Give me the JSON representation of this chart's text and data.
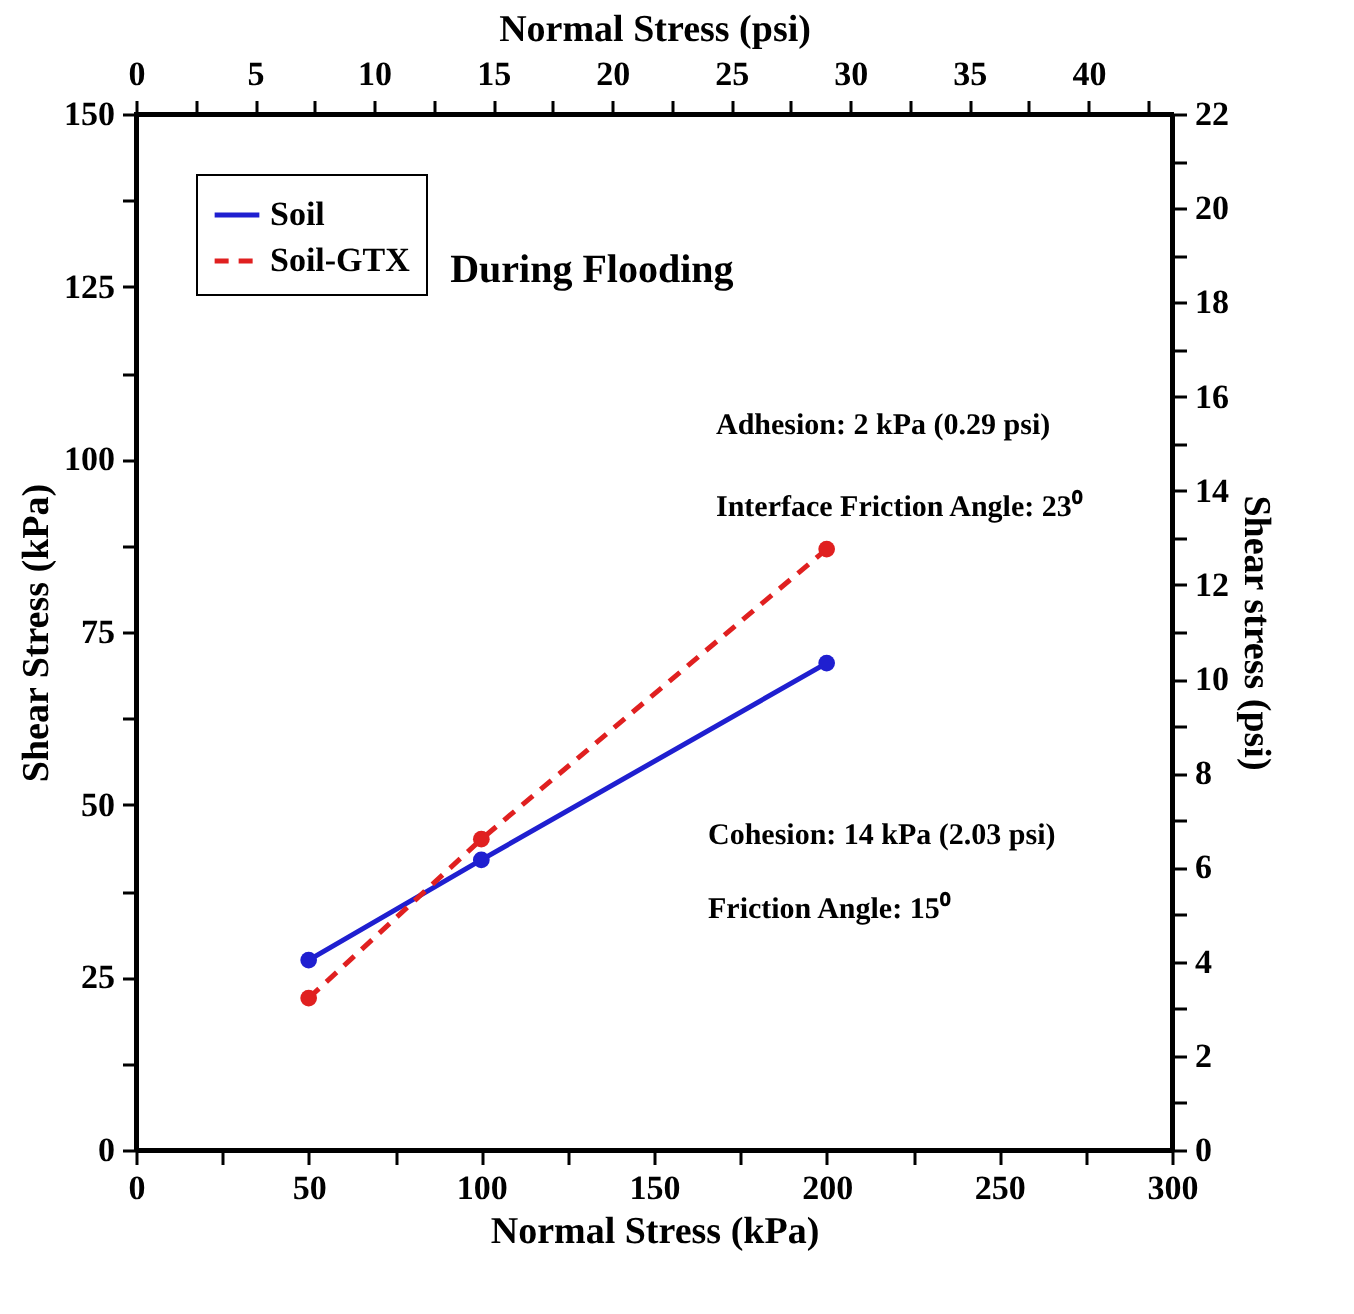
{
  "chart_data": {
    "type": "line",
    "xlabel": "Normal Stress (kPa)",
    "ylabel": "Shear Stress (kPa)",
    "x2label": "Normal Stress (psi)",
    "y2label": "Shear stress (psi)",
    "annotations": [
      "During Flooding",
      "Adhesion: 2 kPa (0.29 psi)",
      "Interface Friction Angle: 23⁰",
      "Cohesion: 14 kPa (2.03 psi)",
      "Friction Angle: 15⁰"
    ],
    "series": [
      {
        "name": "Soil",
        "color": "#1f1fd0",
        "x": [
          50,
          100,
          200
        ],
        "values": [
          27.5,
          42,
          70.5
        ],
        "line_style": "solid"
      },
      {
        "name": "Soil-GTX",
        "color": "#e02020",
        "x": [
          50,
          100,
          200
        ],
        "values": [
          22,
          45,
          87
        ],
        "line_style": "dashed"
      }
    ],
    "marker": "circle",
    "legend": "top left",
    "xlim": [
      0,
      300
    ],
    "xticks": [
      0,
      {
        "value": 25,
        "label": null
      },
      50,
      {
        "value": 75,
        "label": null
      },
      100,
      {
        "value": 125,
        "label": null
      },
      150,
      {
        "value": 175,
        "label": null
      },
      200,
      {
        "value": 225,
        "label": null
      },
      250,
      {
        "value": 275,
        "label": null
      },
      300
    ],
    "ylim": [
      0,
      150
    ],
    "yticks": [
      0,
      {
        "value": 12.5,
        "label": null
      },
      25,
      {
        "value": 37.5,
        "label": null
      },
      50,
      {
        "value": 62.5,
        "label": null
      },
      75,
      {
        "value": 87.5,
        "label": null
      },
      100,
      {
        "value": 112.5,
        "label": null
      },
      125,
      {
        "value": 137.5,
        "label": null
      },
      150
    ],
    "x2lim": [
      0,
      43.51
    ],
    "x2ticks": [
      0,
      {
        "value": 2.5,
        "label": null
      },
      5,
      {
        "value": 7.5,
        "label": null
      },
      10,
      {
        "value": 12.5,
        "label": null
      },
      15,
      {
        "value": 17.5,
        "label": null
      },
      20,
      {
        "value": 22.5,
        "label": null
      },
      25,
      {
        "value": 27.5,
        "label": null
      },
      30,
      {
        "value": 32.5,
        "label": null
      },
      35,
      {
        "value": 37.5,
        "label": null
      },
      40,
      {
        "value": 42.5,
        "label": null
      }
    ],
    "y2lim": [
      0,
      22
    ],
    "y2ticks": [
      0,
      {
        "value": 1,
        "label": null
      },
      2,
      {
        "value": 3,
        "label": null
      },
      4,
      {
        "value": 5,
        "label": null
      },
      6,
      {
        "value": 7,
        "label": null
      },
      8,
      {
        "value": 9,
        "label": null
      },
      10,
      {
        "value": 11,
        "label": null
      },
      12,
      {
        "value": 13,
        "label": null
      },
      14,
      {
        "value": 15,
        "label": null
      },
      16,
      {
        "value": 17,
        "label": null
      },
      18,
      {
        "value": 19,
        "label": null
      },
      20,
      {
        "value": 21,
        "label": null
      },
      22
    ]
  }
}
